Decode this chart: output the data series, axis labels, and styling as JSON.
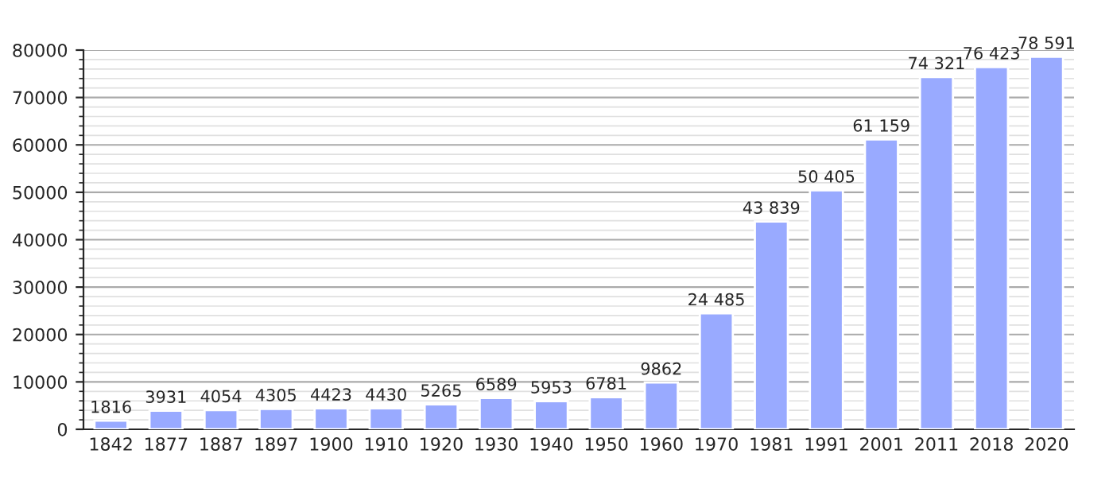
{
  "chart_data": {
    "type": "bar",
    "categories": [
      "1842",
      "1877",
      "1887",
      "1897",
      "1900",
      "1910",
      "1920",
      "1930",
      "1940",
      "1950",
      "1960",
      "1970",
      "1981",
      "1991",
      "2001",
      "2011",
      "2018",
      "2020"
    ],
    "values": [
      1816,
      3931,
      4054,
      4305,
      4423,
      4430,
      5265,
      6589,
      5953,
      6781,
      9862,
      24485,
      43839,
      50405,
      61159,
      74321,
      76423,
      78591
    ],
    "value_labels": [
      "1816",
      "3931",
      "4054",
      "4305",
      "4423",
      "4430",
      "5265",
      "6589",
      "5953",
      "6781",
      "9862",
      "24 485",
      "43 839",
      "50 405",
      "61 159",
      "74 321",
      "76 423",
      "78 591"
    ],
    "color": "#99aaff",
    "ylim": [
      0,
      80000
    ],
    "yticks": [
      0,
      10000,
      20000,
      30000,
      40000,
      50000,
      60000,
      70000,
      80000
    ],
    "grid": true
  }
}
